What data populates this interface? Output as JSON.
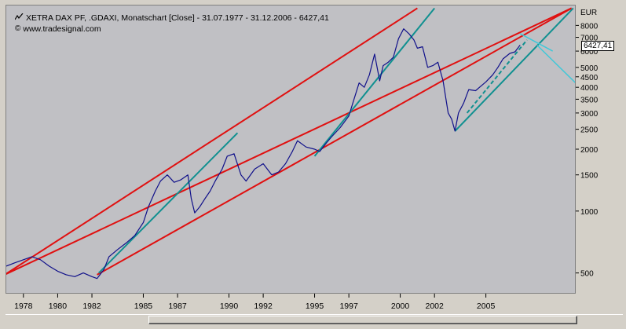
{
  "header": {
    "title": "XETRA DAX PF, .GDAXI, Monatschart [Close] - 31.07.1977 - 31.12.2006 - 6427,41",
    "source": "www.tradesignal.com",
    "chart_icon": "line-chart-icon",
    "copyright_icon": "copyright-icon"
  },
  "colors": {
    "plot_bg": "#c0c0c4",
    "price_line": "#10108a",
    "channel_red": "#e01010",
    "trend_teal": "#109090",
    "projection_cyan": "#40c8d8"
  },
  "chart_data": {
    "type": "line",
    "y_scale": "log",
    "currency_label": "EUR",
    "last_value_label": "6427,41",
    "xlim": [
      1977.0,
      2010.2
    ],
    "ylim": [
      400,
      10000
    ],
    "y_ticks": [
      500,
      1000,
      1500,
      2000,
      2500,
      3000,
      3500,
      4000,
      4500,
      5000,
      6000,
      7000,
      8000
    ],
    "y_tick_labels": [
      "500",
      "1000",
      "1500",
      "2000",
      "2500",
      "3000",
      "3500",
      "4000",
      "4500",
      "5000",
      "6000",
      "7000",
      "8000"
    ],
    "x_ticks": [
      1978,
      1980,
      1982,
      1985,
      1987,
      1990,
      1992,
      1995,
      1997,
      2000,
      2002,
      2005
    ],
    "x_tick_labels": [
      "1978",
      "1980",
      "1982",
      "1985",
      "1987",
      "1990",
      "1992",
      "1995",
      "1997",
      "2000",
      "2002",
      "2005"
    ],
    "series": [
      {
        "values": [
          [
            1977.0,
            540
          ],
          [
            1977.5,
            560
          ],
          [
            1978.0,
            580
          ],
          [
            1978.5,
            600
          ],
          [
            1979.0,
            580
          ],
          [
            1979.5,
            540
          ],
          [
            1980.0,
            510
          ],
          [
            1980.5,
            490
          ],
          [
            1981.0,
            480
          ],
          [
            1981.5,
            500
          ],
          [
            1982.0,
            480
          ],
          [
            1982.3,
            470
          ],
          [
            1982.7,
            520
          ],
          [
            1983.0,
            600
          ],
          [
            1983.5,
            650
          ],
          [
            1984.0,
            700
          ],
          [
            1984.5,
            760
          ],
          [
            1985.0,
            880
          ],
          [
            1985.3,
            1050
          ],
          [
            1985.7,
            1250
          ],
          [
            1986.0,
            1400
          ],
          [
            1986.4,
            1500
          ],
          [
            1986.8,
            1380
          ],
          [
            1987.2,
            1420
          ],
          [
            1987.6,
            1500
          ],
          [
            1987.8,
            1150
          ],
          [
            1988.0,
            980
          ],
          [
            1988.3,
            1050
          ],
          [
            1988.6,
            1150
          ],
          [
            1988.9,
            1250
          ],
          [
            1989.2,
            1400
          ],
          [
            1989.6,
            1600
          ],
          [
            1989.9,
            1850
          ],
          [
            1990.3,
            1900
          ],
          [
            1990.7,
            1500
          ],
          [
            1991.0,
            1400
          ],
          [
            1991.5,
            1600
          ],
          [
            1992.0,
            1700
          ],
          [
            1992.5,
            1500
          ],
          [
            1992.9,
            1550
          ],
          [
            1993.3,
            1700
          ],
          [
            1993.7,
            1950
          ],
          [
            1994.0,
            2200
          ],
          [
            1994.5,
            2050
          ],
          [
            1995.0,
            2000
          ],
          [
            1995.3,
            1950
          ],
          [
            1995.7,
            2150
          ],
          [
            1996.0,
            2300
          ],
          [
            1996.5,
            2550
          ],
          [
            1997.0,
            2900
          ],
          [
            1997.3,
            3500
          ],
          [
            1997.6,
            4200
          ],
          [
            1997.9,
            4000
          ],
          [
            1998.2,
            4600
          ],
          [
            1998.5,
            5800
          ],
          [
            1998.8,
            4300
          ],
          [
            1999.0,
            5100
          ],
          [
            1999.3,
            5300
          ],
          [
            1999.6,
            5600
          ],
          [
            1999.9,
            6900
          ],
          [
            2000.2,
            7700
          ],
          [
            2000.5,
            7300
          ],
          [
            2000.8,
            6800
          ],
          [
            2001.0,
            6200
          ],
          [
            2001.3,
            6300
          ],
          [
            2001.6,
            5000
          ],
          [
            2001.9,
            5100
          ],
          [
            2002.2,
            5300
          ],
          [
            2002.5,
            4300
          ],
          [
            2002.8,
            3000
          ],
          [
            2003.0,
            2800
          ],
          [
            2003.2,
            2450
          ],
          [
            2003.4,
            3000
          ],
          [
            2003.7,
            3350
          ],
          [
            2004.0,
            3900
          ],
          [
            2004.4,
            3850
          ],
          [
            2004.7,
            4050
          ],
          [
            2005.0,
            4250
          ],
          [
            2005.4,
            4600
          ],
          [
            2005.7,
            5000
          ],
          [
            2006.0,
            5500
          ],
          [
            2006.4,
            5850
          ],
          [
            2006.7,
            5950
          ],
          [
            2007.0,
            6427
          ]
        ]
      }
    ],
    "overlay_lines": [
      {
        "kind": "channel",
        "color": "#e01010",
        "from": [
          1976.9,
          490
        ],
        "to": [
          2010.0,
          9700
        ]
      },
      {
        "kind": "channel",
        "color": "#e01010",
        "from": [
          1982.3,
          490
        ],
        "to": [
          2010.0,
          9700
        ]
      },
      {
        "kind": "channel",
        "color": "#e01010",
        "from": [
          1976.9,
          490
        ],
        "to": [
          2001.0,
          9700
        ]
      },
      {
        "kind": "trend",
        "color": "#109090",
        "from": [
          1982.4,
          500
        ],
        "to": [
          1990.5,
          2400
        ]
      },
      {
        "kind": "trend",
        "color": "#109090",
        "from": [
          1995.0,
          1850
        ],
        "to": [
          2002.0,
          9700
        ]
      },
      {
        "kind": "trend",
        "color": "#109090",
        "from": [
          2003.2,
          2450
        ],
        "to": [
          2010.1,
          9700
        ]
      },
      {
        "kind": "trend-dashed",
        "color": "#109090",
        "from": [
          2003.9,
          3000
        ],
        "to": [
          2007.4,
          6800
        ]
      },
      {
        "kind": "projection",
        "color": "#40c8d8",
        "from": [
          2007.0,
          7300
        ],
        "to": [
          2008.9,
          6000
        ]
      },
      {
        "kind": "projection",
        "color": "#40c8d8",
        "from": [
          2008.0,
          6400
        ],
        "to": [
          2010.5,
          4000
        ]
      }
    ]
  }
}
